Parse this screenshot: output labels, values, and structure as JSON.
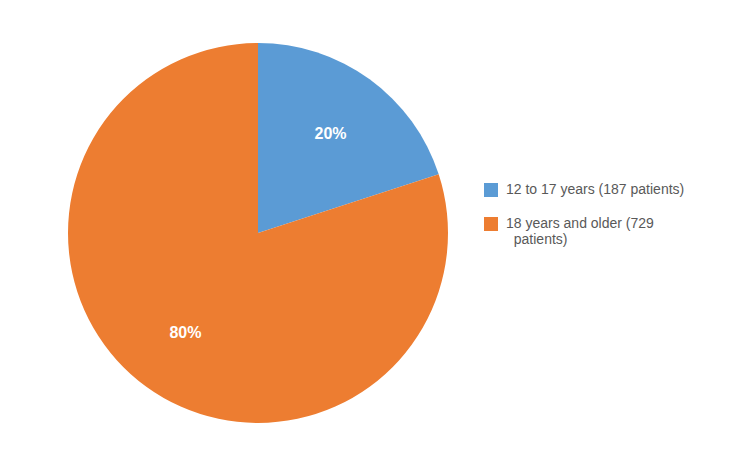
{
  "chart_data": {
    "type": "pie",
    "categories": [
      "12 to 17 years (187 patients)",
      "18 years and older (729\n  patients)"
    ],
    "values": [
      20,
      80
    ],
    "value_labels": [
      "20%",
      "80%"
    ],
    "colors": [
      "#5B9BD5",
      "#ED7D31"
    ],
    "data_labels": true,
    "legend": "right"
  }
}
